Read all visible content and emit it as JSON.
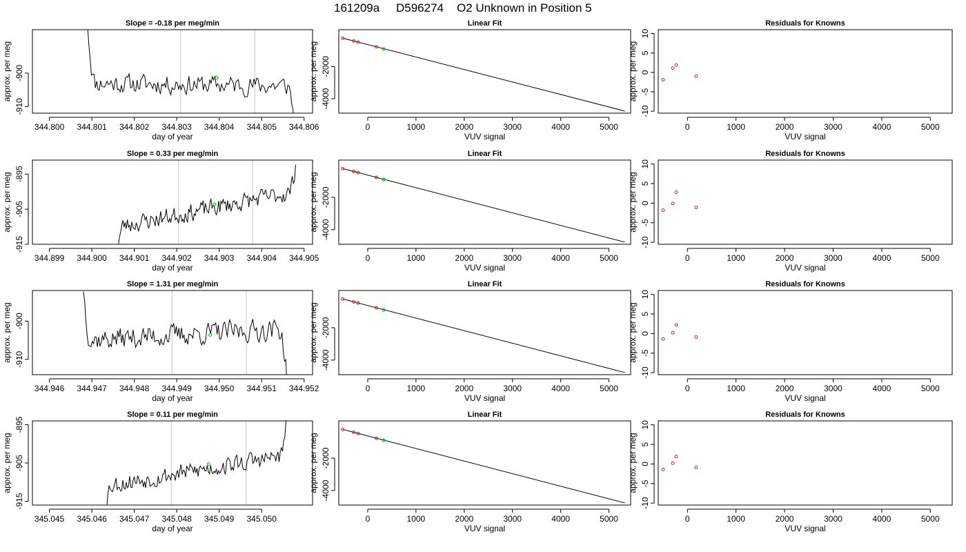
{
  "figure": {
    "title_date": "161209a",
    "title_id": "D596274",
    "title_text": "O2 Unknown in Position  5"
  },
  "chart_data": [
    {
      "type": "line",
      "role": "timeseries",
      "title": "Slope =  -0.18  per meg/min",
      "xlabel": "day of year",
      "ylabel": "approx. per meg",
      "xlim": [
        344.7996,
        344.8062
      ],
      "ylim": [
        -912,
        -887
      ],
      "xticks": [
        "344.800",
        "344.801",
        "344.802",
        "344.803",
        "344.804",
        "344.805",
        "344.806"
      ],
      "xtick_values": [
        344.8,
        344.801,
        344.802,
        344.803,
        344.804,
        344.805,
        344.806
      ],
      "yticks": [
        "-910",
        "-900"
      ],
      "ytick_values": [
        -910,
        -900
      ],
      "vlines": [
        344.80309,
        344.80484
      ],
      "trace": {
        "start": 344.8009,
        "end": 344.8058,
        "base": -903,
        "drift": -0.9,
        "amp": 1.8,
        "seed": 11,
        "head": 18,
        "tail": -16
      },
      "marker": {
        "x": 344.80394,
        "y": -901.4
      }
    },
    {
      "type": "line",
      "role": "timeseries",
      "title": "Slope =  0.33  per meg/min",
      "xlabel": "day of year",
      "ylabel": "approx. per meg",
      "xlim": [
        344.8986,
        344.9052
      ],
      "ylim": [
        -915,
        -891
      ],
      "xticks": [
        "344.899",
        "344.900",
        "344.901",
        "344.902",
        "344.903",
        "344.904",
        "344.905"
      ],
      "xtick_values": [
        344.899,
        344.9,
        344.901,
        344.902,
        344.903,
        344.904,
        344.905
      ],
      "yticks": [
        "-915",
        "-905",
        "-895"
      ],
      "ytick_values": [
        -915,
        -905,
        -895
      ],
      "vlines": [
        344.90204,
        344.90379
      ],
      "trace": {
        "start": 344.9006,
        "end": 344.9048,
        "base": -910,
        "drift": 10,
        "amp": 1.6,
        "seed": 23,
        "head": -6,
        "tail": 8
      },
      "marker": {
        "x": 344.90289,
        "y": -903.6
      }
    },
    {
      "type": "line",
      "role": "timeseries",
      "title": "Slope =  1.31  per meg/min",
      "xlabel": "day of year",
      "ylabel": "approx. per meg",
      "xlim": [
        344.9456,
        344.9522
      ],
      "ylim": [
        -914,
        -892
      ],
      "xticks": [
        "344.946",
        "344.947",
        "344.948",
        "344.949",
        "344.950",
        "344.951",
        "344.952"
      ],
      "xtick_values": [
        344.946,
        344.947,
        344.948,
        344.949,
        344.95,
        344.951,
        344.952
      ],
      "yticks": [
        "-910",
        "-900"
      ],
      "ytick_values": [
        -910,
        -900
      ],
      "vlines": [
        344.94889,
        344.95064
      ],
      "trace": {
        "start": 344.9468,
        "end": 344.9516,
        "base": -905,
        "drift": 3,
        "amp": 1.8,
        "seed": 37,
        "head": 14,
        "tail": -14
      },
      "marker": {
        "x": 344.94979,
        "y": -903.6
      }
    },
    {
      "type": "line",
      "role": "timeseries",
      "title": "Slope =  0.11  per meg/min",
      "xlabel": "day of year",
      "ylabel": "approx. per meg",
      "xlim": [
        345.0446,
        345.0512
      ],
      "ylim": [
        -916,
        -894
      ],
      "xticks": [
        "345.045",
        "345.046",
        "345.047",
        "345.048",
        "345.049",
        "345.050"
      ],
      "xtick_values": [
        345.045,
        345.046,
        345.047,
        345.048,
        345.049,
        345.05
      ],
      "yticks": [
        "-915",
        "-905",
        "-895"
      ],
      "ytick_values": [
        -915,
        -905,
        -895
      ],
      "vlines": [
        345.04787,
        345.04963
      ],
      "trace": {
        "start": 345.0463,
        "end": 345.0506,
        "base": -911,
        "drift": 8,
        "amp": 1.5,
        "seed": 53,
        "head": -6,
        "tail": 10
      },
      "marker": {
        "x": 345.04875,
        "y": -905.3
      }
    },
    {
      "type": "scatter",
      "role": "linear-fit",
      "title": "Linear Fit",
      "xlabel": "VUV signal",
      "ylabel": "approx. per meg",
      "xlim": [
        -600,
        5450
      ],
      "ylim": [
        -4900,
        300
      ],
      "xticks": [
        "0",
        "1000",
        "2000",
        "3000",
        "4000",
        "5000"
      ],
      "xtick_values": [
        0,
        1000,
        2000,
        3000,
        4000,
        5000
      ],
      "yticks": [
        "-4000",
        "-2000"
      ],
      "ytick_values": [
        -4000,
        -2000
      ],
      "line": {
        "x": [
          -520,
          5330
        ],
        "y": [
          -225,
          -4770
        ]
      },
      "knowns": {
        "x": [
          -520,
          -290,
          -200,
          180
        ],
        "y": [
          -225,
          -405,
          -475,
          -770
        ]
      },
      "unknown": {
        "x": 330,
        "y": -900
      }
    },
    {
      "type": "scatter",
      "role": "residuals",
      "title": "Residuals for Knowns",
      "xlabel": "VUV signal",
      "ylabel": "approx. per meg",
      "xlim": [
        -600,
        5450
      ],
      "ylim": [
        -10.5,
        11
      ],
      "xticks": [
        "0",
        "1000",
        "2000",
        "3000",
        "4000",
        "5000"
      ],
      "xtick_values": [
        0,
        1000,
        2000,
        3000,
        4000,
        5000
      ],
      "yticks": [
        "-10",
        "-5",
        "0",
        "5",
        "10"
      ],
      "ytick_values": [
        -10,
        -5,
        0,
        5,
        10
      ],
      "x": [
        -500,
        -300,
        -230,
        180
      ],
      "y": [
        -1.9,
        1.1,
        1.9,
        -1.0
      ]
    },
    {
      "type": "scatter",
      "role": "linear-fit",
      "title": "Linear Fit",
      "xlabel": "VUV signal",
      "ylabel": "approx. per meg",
      "xlim": [
        -600,
        5450
      ],
      "ylim": [
        -4900,
        300
      ],
      "xticks": [
        "0",
        "1000",
        "2000",
        "3000",
        "4000",
        "5000"
      ],
      "xtick_values": [
        0,
        1000,
        2000,
        3000,
        4000,
        5000
      ],
      "yticks": [
        "-4000",
        "-2000"
      ],
      "ytick_values": [
        -4000,
        -2000
      ],
      "line": {
        "x": [
          -520,
          5330
        ],
        "y": [
          -225,
          -4770
        ]
      },
      "knowns": {
        "x": [
          -520,
          -290,
          -200,
          180
        ],
        "y": [
          -225,
          -405,
          -475,
          -770
        ]
      },
      "unknown": {
        "x": 330,
        "y": -900
      }
    },
    {
      "type": "scatter",
      "role": "residuals",
      "title": "Residuals for Knowns",
      "xlabel": "VUV signal",
      "ylabel": "approx. per meg",
      "xlim": [
        -600,
        5450
      ],
      "ylim": [
        -10.5,
        11
      ],
      "xticks": [
        "0",
        "1000",
        "2000",
        "3000",
        "4000",
        "5000"
      ],
      "xtick_values": [
        0,
        1000,
        2000,
        3000,
        4000,
        5000
      ],
      "yticks": [
        "-10",
        "-5",
        "0",
        "5",
        "10"
      ],
      "ytick_values": [
        -10,
        -5,
        0,
        5,
        10
      ],
      "x": [
        -500,
        -300,
        -230,
        180
      ],
      "y": [
        -1.8,
        -0.1,
        2.8,
        -1.1
      ]
    },
    {
      "type": "scatter",
      "role": "linear-fit",
      "title": "Linear Fit",
      "xlabel": "VUV signal",
      "ylabel": "approx. per meg",
      "xlim": [
        -600,
        5450
      ],
      "ylim": [
        -4900,
        300
      ],
      "xticks": [
        "0",
        "1000",
        "2000",
        "3000",
        "4000",
        "5000"
      ],
      "xtick_values": [
        0,
        1000,
        2000,
        3000,
        4000,
        5000
      ],
      "yticks": [
        "-4000",
        "-2000"
      ],
      "ytick_values": [
        -4000,
        -2000
      ],
      "line": {
        "x": [
          -520,
          5330
        ],
        "y": [
          -225,
          -4770
        ]
      },
      "knowns": {
        "x": [
          -520,
          -290,
          -200,
          180
        ],
        "y": [
          -225,
          -405,
          -475,
          -770
        ]
      },
      "unknown": {
        "x": 330,
        "y": -900
      }
    },
    {
      "type": "scatter",
      "role": "residuals",
      "title": "Residuals for Knowns",
      "xlabel": "VUV signal",
      "ylabel": "approx. per meg",
      "xlim": [
        -600,
        5450
      ],
      "ylim": [
        -10.5,
        11
      ],
      "xticks": [
        "0",
        "1000",
        "2000",
        "3000",
        "4000",
        "5000"
      ],
      "xtick_values": [
        0,
        1000,
        2000,
        3000,
        4000,
        5000
      ],
      "yticks": [
        "-10",
        "-5",
        "0",
        "5",
        "10"
      ],
      "ytick_values": [
        -10,
        -5,
        0,
        5,
        10
      ],
      "x": [
        -500,
        -300,
        -230,
        180
      ],
      "y": [
        -1.4,
        0.2,
        2.2,
        -0.9
      ]
    },
    {
      "type": "scatter",
      "role": "linear-fit",
      "title": "Linear Fit",
      "xlabel": "VUV signal",
      "ylabel": "approx. per meg",
      "xlim": [
        -600,
        5450
      ],
      "ylim": [
        -4900,
        300
      ],
      "xticks": [
        "0",
        "1000",
        "2000",
        "3000",
        "4000",
        "5000"
      ],
      "xtick_values": [
        0,
        1000,
        2000,
        3000,
        4000,
        5000
      ],
      "yticks": [
        "-4000",
        "-2000"
      ],
      "ytick_values": [
        -4000,
        -2000
      ],
      "line": {
        "x": [
          -520,
          5330
        ],
        "y": [
          -225,
          -4770
        ]
      },
      "knowns": {
        "x": [
          -520,
          -290,
          -200,
          180
        ],
        "y": [
          -225,
          -405,
          -475,
          -770
        ]
      },
      "unknown": {
        "x": 330,
        "y": -900
      }
    },
    {
      "type": "scatter",
      "role": "residuals",
      "title": "Residuals for Knowns",
      "xlabel": "VUV signal",
      "ylabel": "approx. per meg",
      "xlim": [
        -600,
        5450
      ],
      "ylim": [
        -10.5,
        11
      ],
      "xticks": [
        "0",
        "1000",
        "2000",
        "3000",
        "4000",
        "5000"
      ],
      "xtick_values": [
        0,
        1000,
        2000,
        3000,
        4000,
        5000
      ],
      "yticks": [
        "-10",
        "-5",
        "0",
        "5",
        "10"
      ],
      "ytick_values": [
        -10,
        -5,
        0,
        5,
        10
      ],
      "x": [
        -500,
        -300,
        -230,
        180
      ],
      "y": [
        -1.4,
        0.2,
        1.9,
        -0.9
      ]
    }
  ],
  "colors": {
    "trace": "#000000",
    "vline": "#c8c8c8",
    "unknown_marker": "#00cc00",
    "known_marker": "#cc2222",
    "fit_line": "#000000"
  }
}
